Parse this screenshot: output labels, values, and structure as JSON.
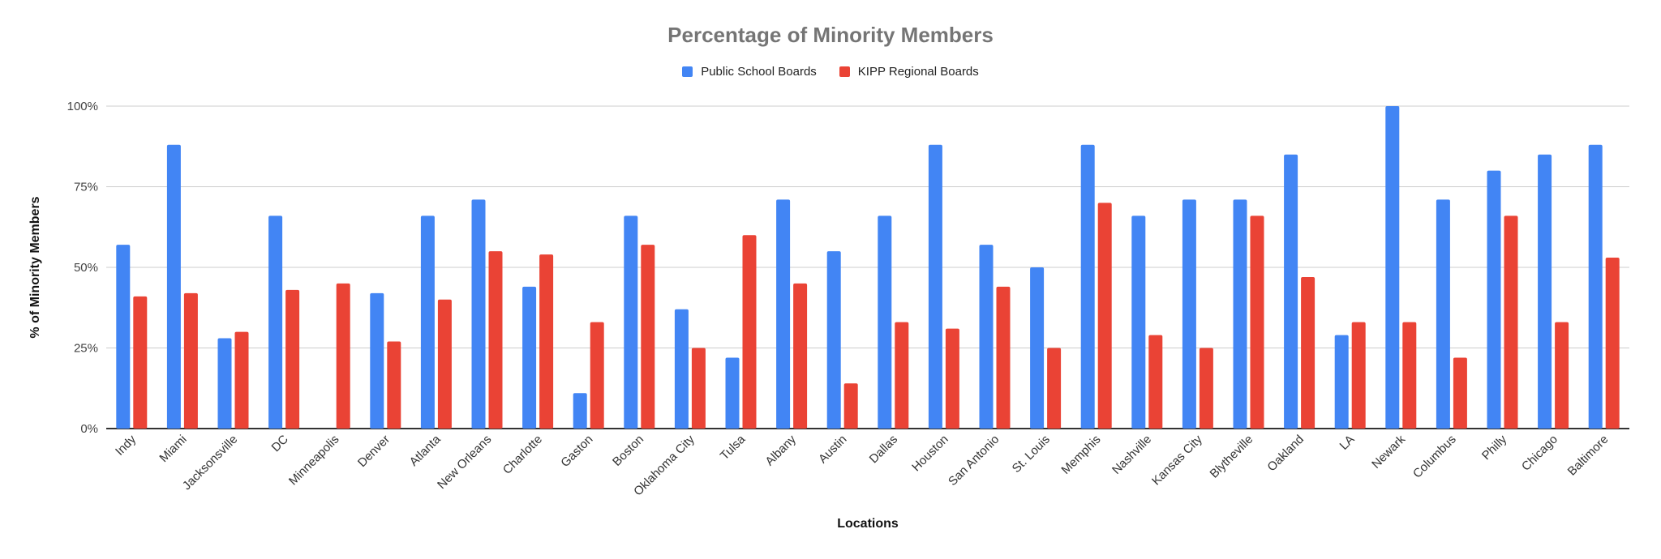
{
  "chart_data": {
    "type": "bar",
    "title": "Percentage of Minority Members",
    "xlabel": "Locations",
    "ylabel": "% of Minority Members",
    "ylim": [
      0,
      100
    ],
    "yticks": [
      "0%",
      "25%",
      "50%",
      "75%",
      "100%"
    ],
    "ytick_values": [
      0,
      25,
      50,
      75,
      100
    ],
    "grid": true,
    "legend_position": "top",
    "categories": [
      "Indy",
      "Miami",
      "Jacksonsville",
      "DC",
      "Minneapolis",
      "Denver",
      "Atlanta",
      "New Orleans",
      "Charlotte",
      "Gaston",
      "Boston",
      "Oklahoma City",
      "Tulsa",
      "Albany",
      "Austin",
      "Dallas",
      "Houston",
      "San Antonio",
      "St. Louis",
      "Memphis",
      "Nashville",
      "Kansas City",
      "Blytheville",
      "Oakland",
      "LA",
      "Newark",
      "Columbus",
      "Philly",
      "Chicago",
      "Baltimore"
    ],
    "series": [
      {
        "name": "Public School Boards",
        "color": "#4285f4",
        "values": [
          57,
          88,
          28,
          66,
          0,
          42,
          66,
          71,
          44,
          11,
          66,
          37,
          22,
          71,
          55,
          66,
          88,
          57,
          50,
          88,
          66,
          71,
          71,
          85,
          29,
          100,
          71,
          80,
          85,
          88
        ]
      },
      {
        "name": "KIPP Regional Boards",
        "color": "#ea4335",
        "values": [
          41,
          42,
          30,
          43,
          45,
          27,
          40,
          55,
          54,
          33,
          57,
          25,
          60,
          45,
          14,
          33,
          31,
          44,
          25,
          70,
          29,
          25,
          66,
          47,
          33,
          33,
          22,
          66,
          33,
          53
        ]
      }
    ]
  }
}
